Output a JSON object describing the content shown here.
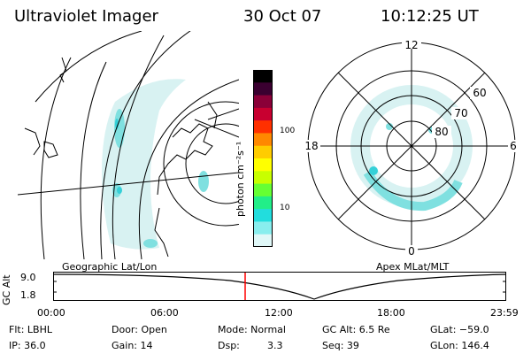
{
  "header": {
    "instrument": "Ultraviolet Imager",
    "date": "30 Oct 07",
    "time": "10:12:25 UT"
  },
  "colorbar": {
    "title": "photon cm⁻²s⁻¹",
    "tick_top": "100",
    "tick_bottom": "10",
    "colors": [
      "#000000",
      "#3a0030",
      "#8a0038",
      "#c80030",
      "#ff3000",
      "#ff8800",
      "#ffcc00",
      "#ffff00",
      "#c8ff00",
      "#66ff33",
      "#22ee88",
      "#22dddd",
      "#88eeee",
      "#e0f8f8"
    ]
  },
  "polar_plot": {
    "mlt_labels": [
      "12",
      "18",
      "6",
      "0"
    ],
    "mlat_labels": [
      "60",
      "70",
      "80"
    ]
  },
  "timeline": {
    "geo_label": "Geographic Lat/Lon",
    "apex_label": "Apex MLat/MLT",
    "axis_title": "GC Alt",
    "y_ticks": [
      "9.0",
      "1.8"
    ],
    "time_ticks": [
      "00:00",
      "06:00",
      "12:00",
      "18:00",
      "23:59"
    ],
    "current_time_marker": "10:12:25"
  },
  "info": {
    "filter": "Flt: LBHL",
    "ip": "IP: 36.0",
    "door": "Door: Open",
    "gain": "Gain: 14",
    "mode": "Mode: Normal",
    "dsp_label": "Dsp:",
    "dsp_value": "3.3",
    "gc_alt": "GC Alt: 6.5 Re",
    "seq": "Seq: 39",
    "glat": "GLat: −59.0",
    "glon": "GLon: 146.4"
  },
  "colors": {
    "aurora_light": "#d8f2f2",
    "aurora_mid": "#7fe0e0",
    "aurora_strong": "#35d0d8",
    "marker": "#ff0000"
  }
}
